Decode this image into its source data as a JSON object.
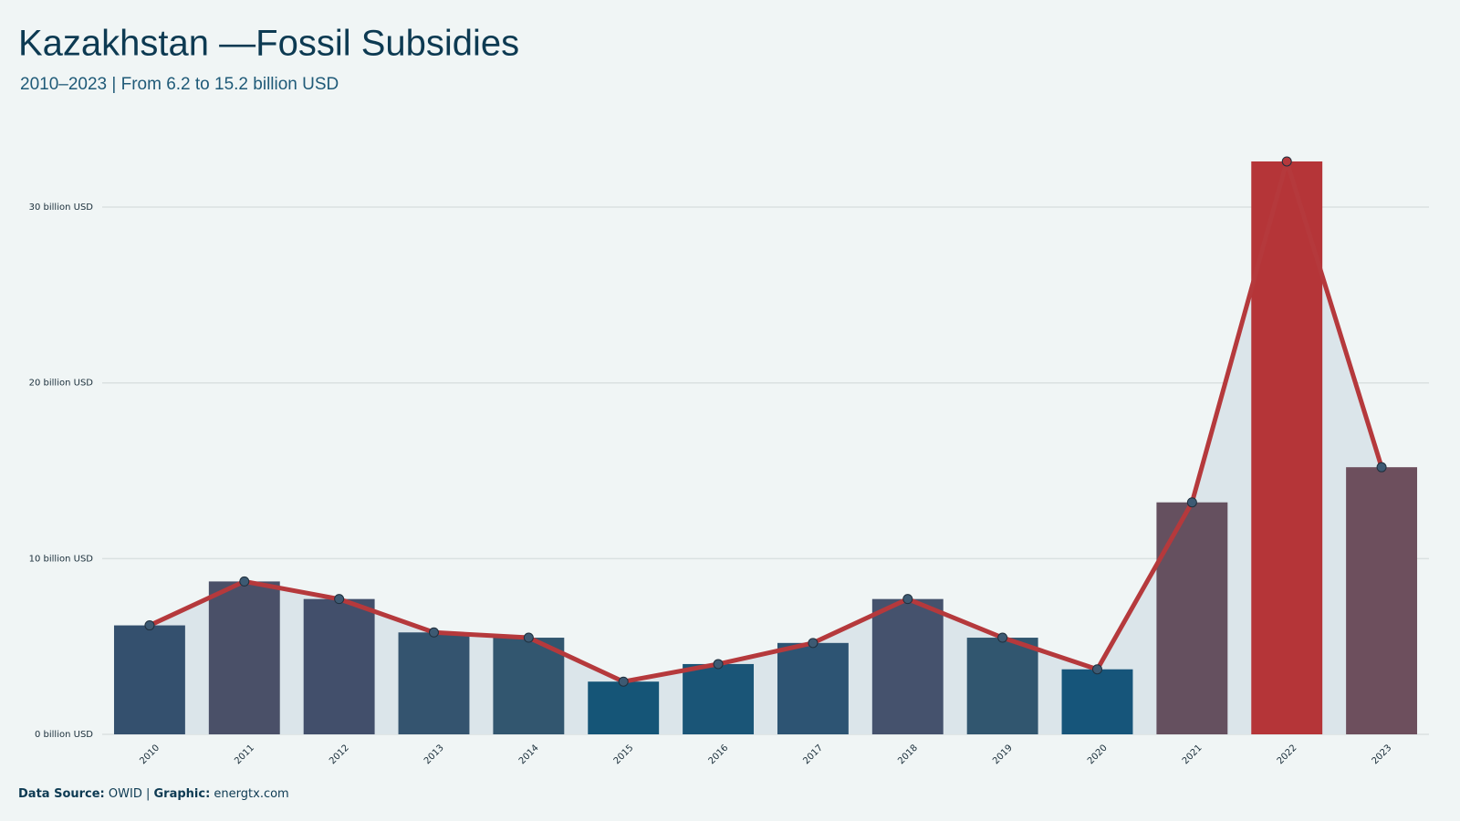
{
  "chart_data": {
    "type": "bar_line",
    "title": "Kazakhstan —Fossil Subsidies",
    "subtitle": "2010–2023 | From 6.2 to 15.2 billion USD",
    "categories": [
      "2010",
      "2011",
      "2012",
      "2013",
      "2014",
      "2015",
      "2016",
      "2017",
      "2018",
      "2019",
      "2020",
      "2021",
      "2022",
      "2023"
    ],
    "values": [
      6.2,
      8.7,
      7.7,
      5.8,
      5.5,
      3.0,
      4.0,
      5.2,
      7.7,
      5.5,
      3.7,
      13.2,
      32.6,
      15.2
    ],
    "colors": [
      "#34506e",
      "#4a5068",
      "#424f6b",
      "#34546f",
      "#32566f",
      "#155577",
      "#1a5577",
      "#2d5473",
      "#45526d",
      "#31566f",
      "#16557a",
      "#65505f",
      "#b53538",
      "#6d4f5d"
    ],
    "line_color": "#b5393c",
    "marker_color": "#3d5a73",
    "area_color": "#dbe5ea",
    "ylim": [
      0,
      34
    ],
    "yticks": [
      {
        "value": 0,
        "label": "0 billion USD"
      },
      {
        "value": 10,
        "label": "10 billion USD"
      },
      {
        "value": 20,
        "label": "20 billion USD"
      },
      {
        "value": 30,
        "label": "30 billion USD"
      }
    ],
    "grid": true,
    "source_label": "Data Source:",
    "source": "OWID |",
    "graphic_label": "Graphic:",
    "graphic": "energtx.com"
  }
}
